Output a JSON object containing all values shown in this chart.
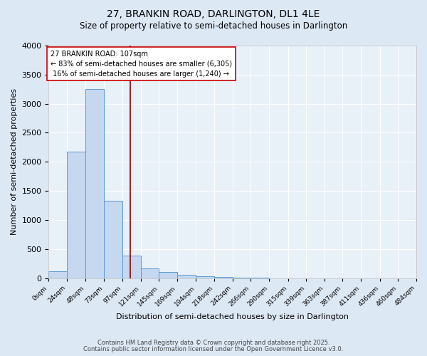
{
  "title_line1": "27, BRANKIN ROAD, DARLINGTON, DL1 4LE",
  "title_line2": "Size of property relative to semi-detached houses in Darlington",
  "xlabel": "Distribution of semi-detached houses by size in Darlington",
  "ylabel": "Number of semi-detached properties",
  "footnote1": "Contains HM Land Registry data © Crown copyright and database right 2025.",
  "footnote2": "Contains public sector information licensed under the Open Government Licence v3.0.",
  "property_label": "27 BRANKIN ROAD: 107sqm",
  "pct_smaller": 83,
  "count_smaller": 6305,
  "pct_larger": 16,
  "count_larger": 1240,
  "bin_edges": [
    0,
    24,
    48,
    73,
    97,
    121,
    145,
    169,
    194,
    218,
    242,
    266,
    290,
    315,
    339,
    363,
    387,
    411,
    436,
    460,
    484
  ],
  "bin_counts": [
    120,
    2170,
    3250,
    1330,
    390,
    160,
    100,
    55,
    30,
    15,
    10,
    5,
    0,
    0,
    0,
    0,
    0,
    0,
    0,
    0
  ],
  "bar_color": "#c5d8f0",
  "bar_edge_color": "#5b9bd5",
  "vline_x": 107,
  "vline_color": "#8b0000",
  "annotation_box_edge_color": "#cc0000",
  "background_color": "#dde8f5",
  "plot_bg_color": "#e8f0f8",
  "grid_color": "#ffffff",
  "ylim": [
    0,
    4000
  ],
  "yticks": [
    0,
    500,
    1000,
    1500,
    2000,
    2500,
    3000,
    3500,
    4000
  ]
}
